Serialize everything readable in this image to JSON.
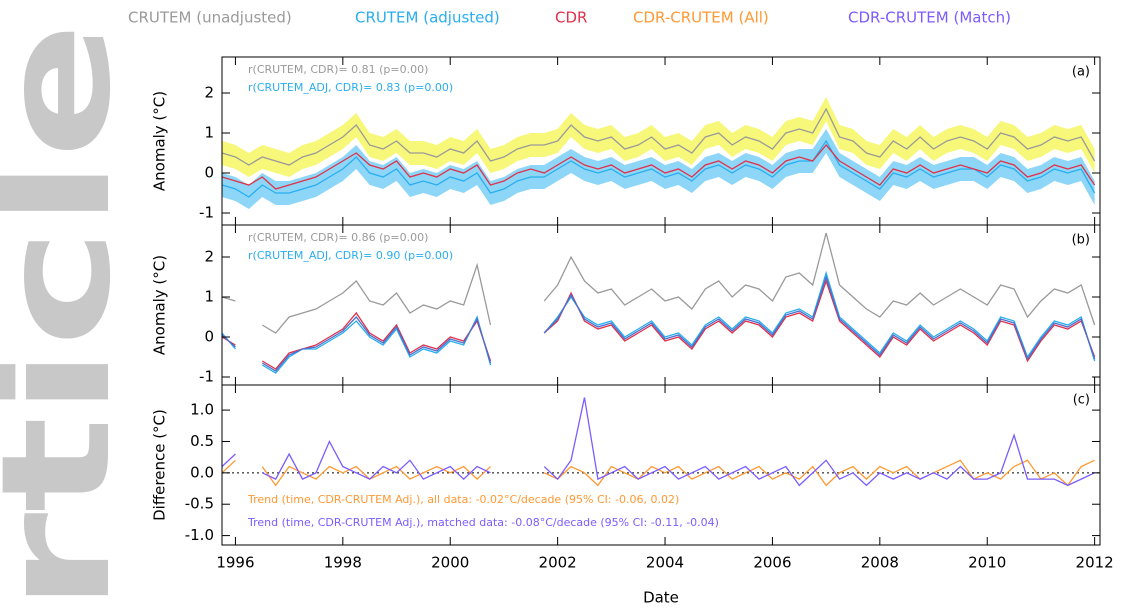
{
  "watermark": "rticle",
  "chart_data": [
    {
      "type": "line",
      "panel_label": "(a)",
      "ylabel": "Anomaly (°C)",
      "annotations": [
        {
          "text": "r(CRUTEM, CDR)= 0.81 (p=0.00)",
          "color": "#9a9a9a"
        },
        {
          "text": "r(CRUTEM_ADJ, CDR)= 0.83 (p=0.00)",
          "color": "#29aef0"
        }
      ],
      "xlim": [
        1995.75,
        2012.1
      ],
      "ylim": [
        -1.3,
        2.9
      ],
      "yticks": [
        -1,
        0,
        1,
        2
      ],
      "xticks": [
        1996,
        1998,
        2000,
        2002,
        2004,
        2006,
        2008,
        2010,
        2012
      ],
      "x": [
        1995.75,
        1996,
        1996.25,
        1996.5,
        1996.75,
        1997,
        1997.25,
        1997.5,
        1997.75,
        1998,
        1998.25,
        1998.5,
        1998.75,
        1999,
        1999.25,
        1999.5,
        1999.75,
        2000,
        2000.25,
        2000.5,
        2000.75,
        2001,
        2001.25,
        2001.5,
        2001.75,
        2002,
        2002.25,
        2002.5,
        2002.75,
        2003,
        2003.25,
        2003.5,
        2003.75,
        2004,
        2004.25,
        2004.5,
        2004.75,
        2005,
        2005.25,
        2005.5,
        2005.75,
        2006,
        2006.25,
        2006.5,
        2006.75,
        2007,
        2007.25,
        2007.5,
        2007.75,
        2008,
        2008.25,
        2008.5,
        2008.75,
        2009,
        2009.25,
        2009.5,
        2009.75,
        2010,
        2010.25,
        2010.5,
        2010.75,
        2011,
        2011.25,
        2011.5,
        2011.75,
        2012
      ],
      "series": [
        {
          "name": "CRUTEM (unadjusted)",
          "color": "#9a9a9a",
          "uncertainty": 0.3,
          "band_color": "#f7f77a",
          "values": [
            0.5,
            0.4,
            0.2,
            0.4,
            0.3,
            0.2,
            0.4,
            0.5,
            0.7,
            0.9,
            1.2,
            0.7,
            0.6,
            0.8,
            0.5,
            0.5,
            0.4,
            0.6,
            0.5,
            0.8,
            0.3,
            0.4,
            0.6,
            0.7,
            0.7,
            0.8,
            1.2,
            0.9,
            0.8,
            0.9,
            0.6,
            0.7,
            0.9,
            0.6,
            0.7,
            0.5,
            0.9,
            1.0,
            0.7,
            0.9,
            0.8,
            0.6,
            1.0,
            1.1,
            1.0,
            1.6,
            0.9,
            0.8,
            0.5,
            0.4,
            0.8,
            0.6,
            0.9,
            0.6,
            0.8,
            0.9,
            0.8,
            0.6,
            1.0,
            0.9,
            0.6,
            0.7,
            0.9,
            0.8,
            0.9,
            0.3
          ]
        },
        {
          "name": "CRUTEM (adjusted)",
          "color": "#29aef0",
          "uncertainty": 0.3,
          "band_color": "#8dd6f7",
          "values": [
            -0.3,
            -0.4,
            -0.6,
            -0.3,
            -0.5,
            -0.5,
            -0.4,
            -0.3,
            -0.1,
            0.1,
            0.4,
            0.0,
            -0.1,
            0.1,
            -0.3,
            -0.2,
            -0.3,
            -0.1,
            -0.2,
            0.0,
            -0.5,
            -0.4,
            -0.2,
            -0.1,
            -0.1,
            0.1,
            0.3,
            0.1,
            0.0,
            0.1,
            -0.1,
            0.0,
            0.1,
            -0.1,
            0.0,
            -0.2,
            0.1,
            0.2,
            0.0,
            0.2,
            0.1,
            -0.1,
            0.2,
            0.3,
            0.3,
            0.8,
            0.2,
            0.0,
            -0.2,
            -0.4,
            0.0,
            -0.1,
            0.1,
            -0.1,
            0.0,
            0.1,
            0.1,
            -0.1,
            0.2,
            0.1,
            -0.2,
            -0.1,
            0.1,
            0.0,
            0.1,
            -0.5
          ]
        },
        {
          "name": "CDR",
          "color": "#e0304a",
          "values": [
            -0.1,
            -0.2,
            -0.3,
            -0.1,
            -0.4,
            -0.3,
            -0.2,
            -0.1,
            0.1,
            0.3,
            0.5,
            0.2,
            0.1,
            0.3,
            -0.1,
            0.0,
            -0.1,
            0.1,
            0.0,
            0.2,
            -0.3,
            -0.2,
            0.0,
            0.1,
            0.0,
            0.2,
            0.4,
            0.2,
            0.1,
            0.2,
            0.0,
            0.1,
            0.2,
            0.0,
            0.1,
            -0.1,
            0.2,
            0.3,
            0.1,
            0.3,
            0.2,
            0.0,
            0.3,
            0.4,
            0.3,
            0.7,
            0.3,
            0.1,
            -0.1,
            -0.3,
            0.1,
            0.0,
            0.2,
            0.0,
            0.1,
            0.2,
            0.1,
            0.0,
            0.3,
            0.2,
            -0.1,
            0.0,
            0.2,
            0.1,
            0.2,
            -0.3
          ]
        }
      ]
    },
    {
      "type": "line",
      "panel_label": "(b)",
      "ylabel": "Anomaly (°C)",
      "annotations": [
        {
          "text": "r(CRUTEM, CDR)= 0.86 (p=0.00)",
          "color": "#9a9a9a"
        },
        {
          "text": "r(CRUTEM_ADJ, CDR)= 0.90 (p=0.00)",
          "color": "#29aef0"
        }
      ],
      "xlim": [
        1995.75,
        2012.1
      ],
      "ylim": [
        -1.2,
        2.8
      ],
      "yticks": [
        -1,
        0,
        1,
        2
      ],
      "xticks": [
        1996,
        1998,
        2000,
        2002,
        2004,
        2006,
        2008,
        2010,
        2012
      ],
      "x": [
        1995.75,
        1996,
        1996.25,
        1996.5,
        1996.75,
        1997,
        1997.25,
        1997.5,
        1997.75,
        1998,
        1998.25,
        1998.5,
        1998.75,
        1999,
        1999.25,
        1999.5,
        1999.75,
        2000,
        2000.25,
        2000.5,
        2000.75,
        2001,
        2001.25,
        2001.5,
        2001.75,
        2002,
        2002.25,
        2002.5,
        2002.75,
        2003,
        2003.25,
        2003.5,
        2003.75,
        2004,
        2004.25,
        2004.5,
        2004.75,
        2005,
        2005.25,
        2005.5,
        2005.75,
        2006,
        2006.25,
        2006.5,
        2006.75,
        2007,
        2007.25,
        2007.5,
        2007.75,
        2008,
        2008.25,
        2008.5,
        2008.75,
        2009,
        2009.25,
        2009.5,
        2009.75,
        2010,
        2010.25,
        2010.5,
        2010.75,
        2011,
        2011.25,
        2011.5,
        2011.75,
        2012
      ],
      "series": [
        {
          "color": "#9a9a9a",
          "values": [
            1.0,
            0.9,
            null,
            0.3,
            0.1,
            0.5,
            0.6,
            0.7,
            0.9,
            1.1,
            1.4,
            0.9,
            0.8,
            1.1,
            0.6,
            0.8,
            0.7,
            0.9,
            0.8,
            1.8,
            0.3,
            null,
            null,
            null,
            0.9,
            1.3,
            2.0,
            1.4,
            1.1,
            1.2,
            0.8,
            1.0,
            1.2,
            0.9,
            1.0,
            0.7,
            1.2,
            1.4,
            1.0,
            1.3,
            1.2,
            0.9,
            1.5,
            1.6,
            1.3,
            2.6,
            1.3,
            1.0,
            0.7,
            0.5,
            0.9,
            0.8,
            1.1,
            0.8,
            1.0,
            1.2,
            1.0,
            0.8,
            1.3,
            1.2,
            0.5,
            0.9,
            1.2,
            1.1,
            1.3,
            0.3
          ]
        },
        {
          "color": "#29aef0",
          "values": [
            0.1,
            -0.3,
            null,
            -0.7,
            -0.9,
            -0.5,
            -0.3,
            -0.3,
            -0.1,
            0.1,
            0.4,
            0.0,
            -0.2,
            0.2,
            -0.5,
            -0.3,
            -0.4,
            -0.1,
            -0.2,
            0.5,
            -0.7,
            null,
            null,
            null,
            0.1,
            0.5,
            1.0,
            0.5,
            0.3,
            0.4,
            0.0,
            0.2,
            0.4,
            0.0,
            0.1,
            -0.2,
            0.3,
            0.5,
            0.2,
            0.5,
            0.4,
            0.1,
            0.6,
            0.7,
            0.5,
            1.6,
            0.5,
            0.2,
            -0.1,
            -0.4,
            0.1,
            -0.1,
            0.3,
            0.0,
            0.2,
            0.4,
            0.2,
            -0.1,
            0.5,
            0.4,
            -0.5,
            0.0,
            0.4,
            0.3,
            0.5,
            -0.6
          ]
        },
        {
          "color": "#e0304a",
          "values": [
            0.0,
            -0.2,
            null,
            -0.6,
            -0.8,
            -0.4,
            -0.3,
            -0.2,
            0.0,
            0.2,
            0.6,
            0.1,
            -0.1,
            0.3,
            -0.4,
            -0.2,
            -0.3,
            0.0,
            -0.1,
            0.4,
            -0.6,
            null,
            null,
            null,
            0.1,
            0.4,
            1.1,
            0.4,
            0.2,
            0.3,
            -0.1,
            0.1,
            0.3,
            -0.1,
            0.0,
            -0.3,
            0.2,
            0.4,
            0.1,
            0.4,
            0.3,
            0.0,
            0.5,
            0.6,
            0.4,
            1.4,
            0.4,
            0.1,
            -0.2,
            -0.5,
            0.0,
            -0.2,
            0.2,
            -0.1,
            0.1,
            0.3,
            0.1,
            -0.2,
            0.4,
            0.3,
            -0.6,
            -0.1,
            0.3,
            0.2,
            0.4,
            -0.5
          ]
        },
        {
          "color": "#4a6fd0",
          "values": [
            0.05,
            -0.25,
            null,
            -0.65,
            -0.85,
            -0.45,
            -0.3,
            -0.25,
            -0.05,
            0.15,
            0.5,
            0.05,
            -0.15,
            0.25,
            -0.45,
            -0.25,
            -0.35,
            -0.05,
            -0.15,
            0.45,
            -0.65,
            null,
            null,
            null,
            0.1,
            0.45,
            1.05,
            0.45,
            0.25,
            0.35,
            -0.05,
            0.15,
            0.35,
            -0.05,
            0.05,
            -0.25,
            0.25,
            0.45,
            0.15,
            0.45,
            0.35,
            0.05,
            0.55,
            0.65,
            0.45,
            1.5,
            0.45,
            0.15,
            -0.15,
            -0.45,
            0.05,
            -0.15,
            0.25,
            -0.05,
            0.15,
            0.35,
            0.15,
            -0.15,
            0.45,
            0.35,
            -0.55,
            -0.05,
            0.35,
            0.25,
            0.45,
            -0.55
          ]
        }
      ]
    },
    {
      "type": "line",
      "panel_label": "(c)",
      "ylabel": "Difference (°C)",
      "xlabel": "Date",
      "zero_line": true,
      "annotations": [
        {
          "text": "Trend (time, CDR-CRUTEM Adj.), all data: -0.02°C/decade (95% CI: -0.06, 0.02)",
          "color": "#ff9933"
        },
        {
          "text": "Trend (time, CDR-CRUTEM Adj.), matched data: -0.08°C/decade (95% CI: -0.11, -0.04)",
          "color": "#7b5cff"
        }
      ],
      "xlim": [
        1995.75,
        2012.1
      ],
      "ylim": [
        -1.15,
        1.4
      ],
      "yticks": [
        {
          "value": -1,
          "label": "-1.0"
        },
        {
          "value": -0.5,
          "label": "-0.5"
        },
        {
          "value": 0,
          "label": "0.0"
        },
        {
          "value": 0.5,
          "label": "0.5"
        },
        {
          "value": 1,
          "label": "1.0"
        }
      ],
      "xticks": [
        1996,
        1998,
        2000,
        2002,
        2004,
        2006,
        2008,
        2010,
        2012
      ],
      "x": [
        1995.75,
        1996,
        1996.25,
        1996.5,
        1996.75,
        1997,
        1997.25,
        1997.5,
        1997.75,
        1998,
        1998.25,
        1998.5,
        1998.75,
        1999,
        1999.25,
        1999.5,
        1999.75,
        2000,
        2000.25,
        2000.5,
        2000.75,
        2001,
        2001.25,
        2001.5,
        2001.75,
        2002,
        2002.25,
        2002.5,
        2002.75,
        2003,
        2003.25,
        2003.5,
        2003.75,
        2004,
        2004.25,
        2004.5,
        2004.75,
        2005,
        2005.25,
        2005.5,
        2005.75,
        2006,
        2006.25,
        2006.5,
        2006.75,
        2007,
        2007.25,
        2007.5,
        2007.75,
        2008,
        2008.25,
        2008.5,
        2008.75,
        2009,
        2009.25,
        2009.5,
        2009.75,
        2010,
        2010.25,
        2010.5,
        2010.75,
        2011,
        2011.25,
        2011.5,
        2011.75,
        2012
      ],
      "series": [
        {
          "name": "CDR-CRUTEM (All)",
          "color": "#ff9933",
          "values": [
            0.0,
            0.2,
            null,
            0.1,
            -0.2,
            0.1,
            0.0,
            -0.1,
            0.1,
            0.0,
            0.1,
            -0.1,
            0.0,
            0.1,
            -0.1,
            0.0,
            0.1,
            0.0,
            0.1,
            -0.1,
            0.1,
            null,
            null,
            null,
            0.0,
            -0.1,
            0.1,
            0.0,
            -0.2,
            0.1,
            0.0,
            -0.1,
            0.1,
            0.0,
            0.1,
            -0.1,
            0.0,
            0.1,
            -0.1,
            0.0,
            0.1,
            -0.1,
            0.0,
            -0.1,
            0.1,
            -0.2,
            0.0,
            0.1,
            -0.1,
            0.1,
            0.0,
            0.1,
            -0.1,
            0.0,
            0.1,
            0.2,
            -0.1,
            0.0,
            -0.1,
            0.1,
            0.2,
            -0.1,
            0.0,
            -0.2,
            0.1,
            0.2
          ]
        },
        {
          "name": "CDR-CRUTEM (Match)",
          "color": "#7b5cff",
          "values": [
            0.1,
            0.3,
            null,
            0.0,
            -0.1,
            0.3,
            -0.1,
            0.0,
            0.5,
            0.1,
            0.0,
            -0.1,
            0.1,
            0.0,
            0.2,
            -0.1,
            0.0,
            0.1,
            -0.1,
            0.1,
            0.0,
            null,
            null,
            null,
            0.1,
            -0.1,
            0.2,
            1.2,
            -0.1,
            0.0,
            0.1,
            -0.1,
            0.0,
            0.1,
            -0.1,
            0.0,
            0.1,
            -0.1,
            0.0,
            0.1,
            -0.1,
            0.0,
            0.1,
            -0.2,
            0.0,
            0.2,
            -0.1,
            0.0,
            -0.2,
            0.0,
            -0.1,
            0.0,
            -0.1,
            0.0,
            -0.1,
            0.1,
            -0.1,
            -0.1,
            0.0,
            0.6,
            -0.1,
            -0.1,
            -0.1,
            -0.2,
            -0.1,
            0.0
          ]
        }
      ]
    }
  ]
}
